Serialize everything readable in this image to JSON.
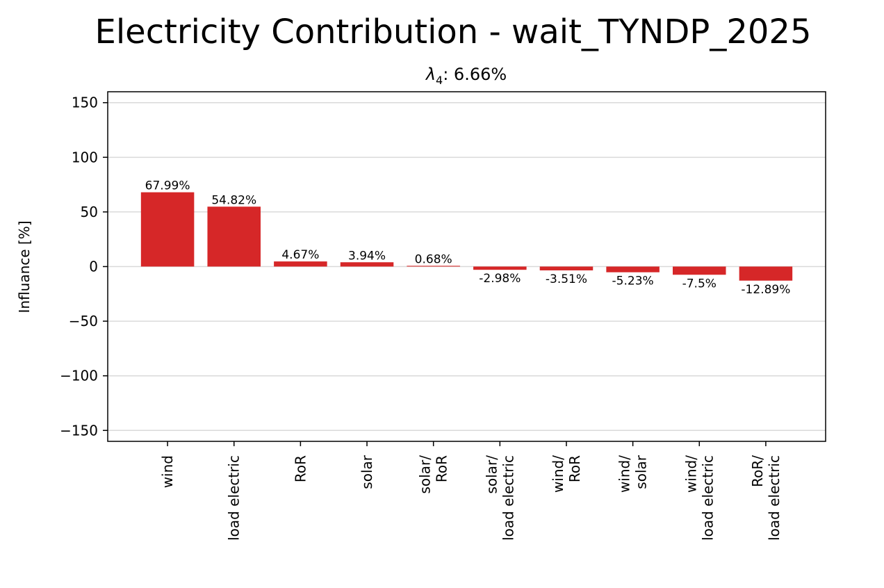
{
  "chart_data": {
    "type": "bar",
    "title": "Electricity Contribution - wait_TYNDP_2025",
    "subtitle_symbol": "λ",
    "subtitle_subscript": "4",
    "subtitle_value": ": 6.66%",
    "ylabel": "Influance [%]",
    "xlabel": "",
    "ylim": [
      -160,
      160
    ],
    "yticks": [
      150,
      100,
      50,
      0,
      -50,
      -100,
      -150
    ],
    "ytick_labels": [
      "150",
      "100",
      "50",
      "0",
      "−50",
      "−100",
      "−150"
    ],
    "grid": "horizontal",
    "bar_color": "#d62728",
    "categories": [
      [
        "wind"
      ],
      [
        "load electric"
      ],
      [
        "RoR"
      ],
      [
        "solar"
      ],
      [
        "solar/",
        "RoR"
      ],
      [
        "solar/",
        "load electric"
      ],
      [
        "wind/",
        "RoR"
      ],
      [
        "wind/",
        "solar"
      ],
      [
        "wind/",
        "load electric"
      ],
      [
        "RoR/",
        "load electric"
      ]
    ],
    "values": [
      67.99,
      54.82,
      4.67,
      3.94,
      0.68,
      -2.98,
      -3.51,
      -5.23,
      -7.5,
      -12.89
    ],
    "value_labels": [
      "67.99%",
      "54.82%",
      "4.67%",
      "3.94%",
      "0.68%",
      "-2.98%",
      "-3.51%",
      "-5.23%",
      "-7.5%",
      "-12.89%"
    ]
  }
}
